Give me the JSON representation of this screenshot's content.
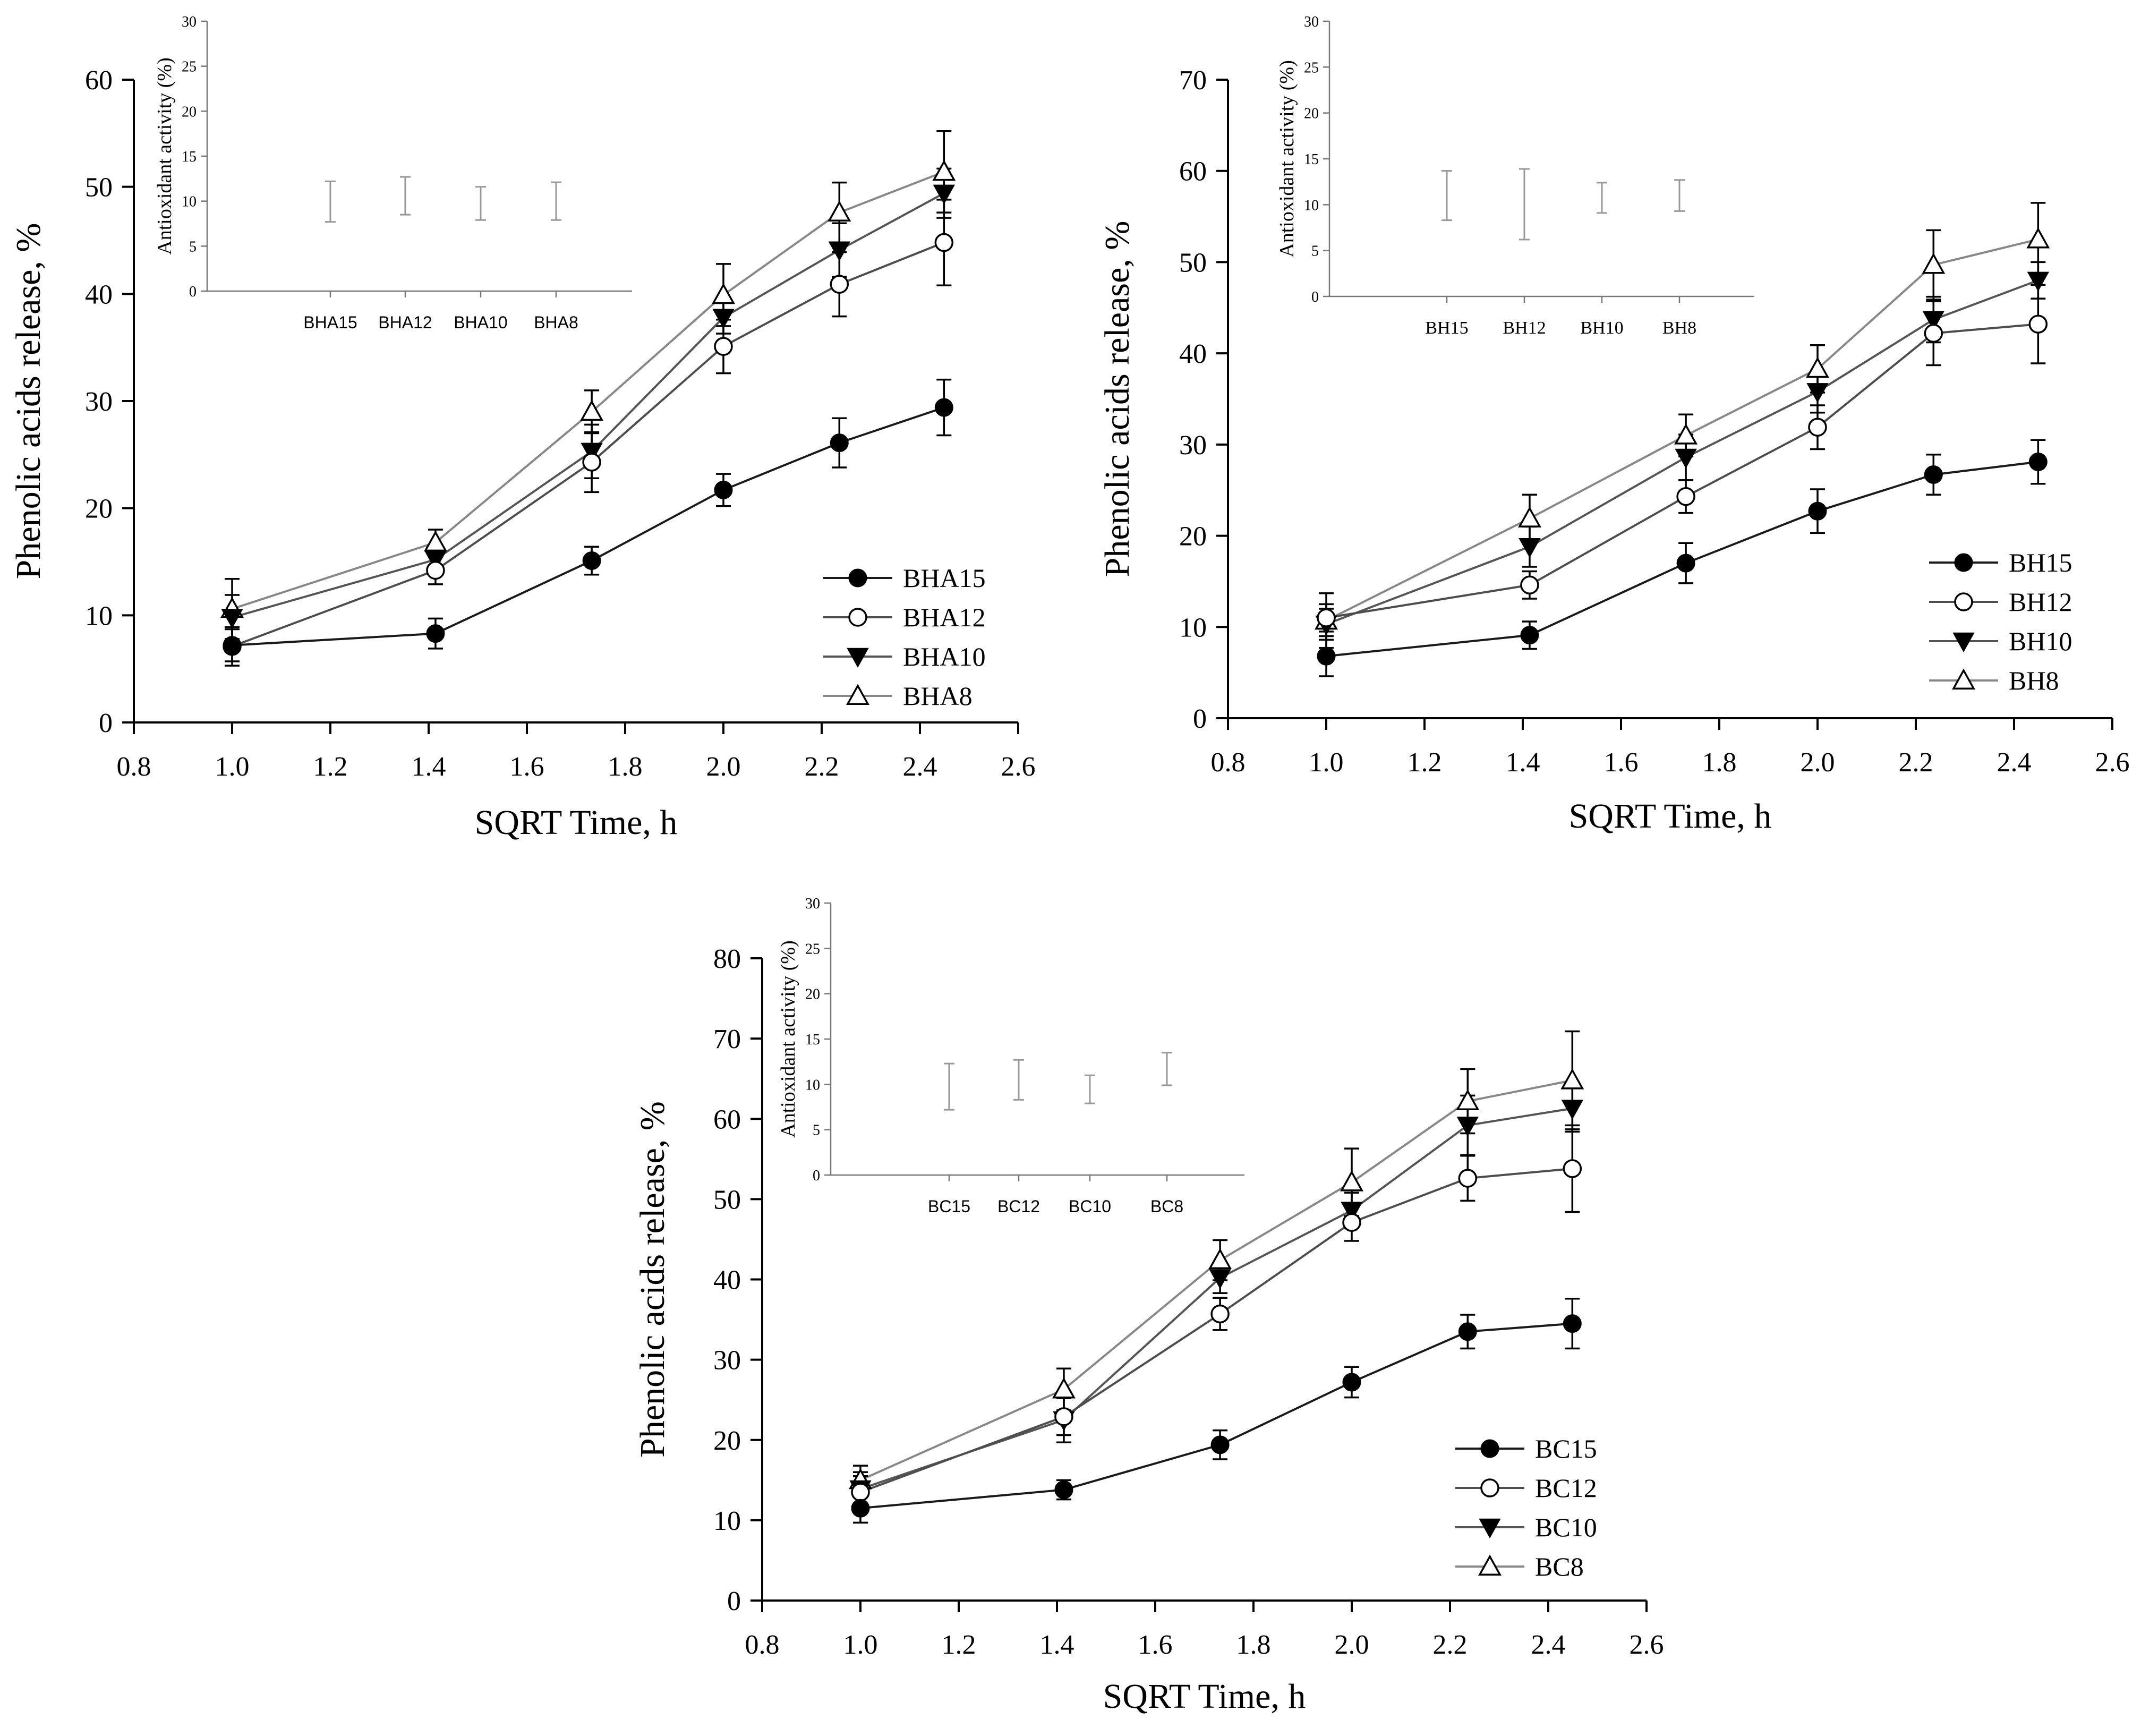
{
  "colors": {
    "axis": "#000000",
    "inset_axis": "#888888",
    "inset_bar": "#999999",
    "series": {
      "filled_circle": "#000000",
      "open_circle": "#000000",
      "filled_triangle_down": "#000000",
      "open_triangle_up": "#000000"
    },
    "lines": [
      "#1a1a1a",
      "#4d4d4d",
      "#555555",
      "#888888"
    ]
  },
  "chart_data": [
    {
      "type": "line",
      "panel": "top-left",
      "xlabel": "SQRT Time, h",
      "ylabel": "Phenolic acids release, %",
      "xlim": [
        0.8,
        2.6
      ],
      "ylim": [
        0,
        60
      ],
      "x_ticks": [
        "0.8",
        "1.0",
        "1.2",
        "1.4",
        "1.6",
        "1.8",
        "2.0",
        "2.2",
        "2.4",
        "2.6"
      ],
      "y_ticks": [
        "0",
        "10",
        "20",
        "30",
        "40",
        "50",
        "60"
      ],
      "x": [
        1.0,
        1.414,
        1.732,
        2.0,
        2.236,
        2.449
      ],
      "series": [
        {
          "name": "BHA15",
          "marker": "filled_circle",
          "values": [
            7.2,
            8.3,
            15.1,
            21.7,
            26.1,
            29.4
          ],
          "errors": [
            1.5,
            1.4,
            1.3,
            1.5,
            2.3,
            2.6
          ]
        },
        {
          "name": "BHA12",
          "marker": "open_circle",
          "values": [
            7.1,
            14.2,
            24.3,
            35.1,
            40.9,
            44.8
          ],
          "errors": [
            1.8,
            1.3,
            2.8,
            2.5,
            3.0,
            4.0
          ]
        },
        {
          "name": "BHA10",
          "marker": "filled_triangle_down",
          "values": [
            9.8,
            15.2,
            25.3,
            37.8,
            44.1,
            49.4
          ],
          "errors": [
            2.1,
            1.2,
            2.5,
            1.5,
            2.5,
            2.3
          ]
        },
        {
          "name": "BHA8",
          "marker": "open_triangle_up",
          "values": [
            10.6,
            16.8,
            29.0,
            39.9,
            47.6,
            51.4
          ],
          "errors": [
            2.8,
            1.2,
            2.0,
            2.9,
            2.8,
            3.8
          ]
        }
      ],
      "legend_position": "bottom-right",
      "inset": {
        "type": "errorbar",
        "ylabel": "Antioxidant activity (%)",
        "ylim": [
          0,
          30
        ],
        "y_ticks": [
          "0",
          "5",
          "10",
          "15",
          "20",
          "25",
          "30"
        ],
        "categories": [
          "BHA15",
          "BHA12",
          "BHA10",
          "BHA8"
        ],
        "intervals": [
          [
            7.7,
            12.2
          ],
          [
            8.5,
            12.7
          ],
          [
            7.9,
            11.6
          ],
          [
            7.9,
            12.1
          ]
        ]
      }
    },
    {
      "type": "line",
      "panel": "top-right",
      "xlabel": "SQRT Time, h",
      "ylabel": "Phenolic acids release, %",
      "xlim": [
        0.8,
        2.6
      ],
      "ylim": [
        0,
        70
      ],
      "x_ticks": [
        "0.8",
        "1.0",
        "1.2",
        "1.4",
        "1.6",
        "1.8",
        "2.0",
        "2.2",
        "2.4",
        "2.6"
      ],
      "y_ticks": [
        "0",
        "10",
        "20",
        "30",
        "40",
        "50",
        "60",
        "70"
      ],
      "x": [
        1.0,
        1.414,
        1.732,
        2.0,
        2.236,
        2.449
      ],
      "series": [
        {
          "name": "BH15",
          "marker": "filled_circle",
          "values": [
            6.8,
            9.1,
            17.0,
            22.7,
            26.7,
            28.1
          ],
          "errors": [
            2.2,
            1.5,
            2.2,
            2.4,
            2.2,
            2.4
          ]
        },
        {
          "name": "BH12",
          "marker": "open_circle",
          "values": [
            11.0,
            14.6,
            24.3,
            31.9,
            42.2,
            43.2
          ],
          "errors": [
            1.5,
            1.5,
            1.8,
            2.4,
            3.5,
            4.3
          ]
        },
        {
          "name": "BH10",
          "marker": "filled_triangle_down",
          "values": [
            10.3,
            18.8,
            28.6,
            35.8,
            43.7,
            48.0
          ],
          "errors": [
            1.7,
            2.2,
            2.5,
            2.3,
            2.5,
            2.0
          ]
        },
        {
          "name": "BH8",
          "marker": "open_triangle_up",
          "values": [
            10.7,
            21.9,
            31.0,
            38.3,
            49.7,
            52.5
          ],
          "errors": [
            3.0,
            2.6,
            2.3,
            2.6,
            3.8,
            4.0
          ]
        }
      ],
      "legend_position": "bottom-right",
      "inset": {
        "type": "errorbar",
        "ylabel": "Antioxidant activity (%)",
        "ylim": [
          0,
          30
        ],
        "y_ticks": [
          "0",
          "5",
          "10",
          "15",
          "20",
          "25",
          "30"
        ],
        "categories": [
          "BH15",
          "BH12",
          "BH10",
          "BH8"
        ],
        "intervals": [
          [
            8.3,
            13.7
          ],
          [
            6.2,
            13.9
          ],
          [
            9.1,
            12.4
          ],
          [
            9.3,
            12.7
          ]
        ]
      }
    },
    {
      "type": "line",
      "panel": "bottom-center",
      "xlabel": "SQRT Time, h",
      "ylabel": "Phenolic acids release, %",
      "xlim": [
        0.8,
        2.6
      ],
      "ylim": [
        0,
        80
      ],
      "x_ticks": [
        "0.8",
        "1.0",
        "1.2",
        "1.4",
        "1.6",
        "1.8",
        "2.0",
        "2.2",
        "2.4",
        "2.6"
      ],
      "y_ticks": [
        "0",
        "10",
        "20",
        "30",
        "40",
        "50",
        "60",
        "70",
        "80"
      ],
      "x": [
        1.0,
        1.414,
        1.732,
        2.0,
        2.236,
        2.449
      ],
      "series": [
        {
          "name": "BC15",
          "marker": "filled_circle",
          "values": [
            11.5,
            13.8,
            19.4,
            27.2,
            33.5,
            34.5
          ],
          "errors": [
            1.8,
            1.2,
            1.8,
            1.9,
            2.1,
            3.1
          ]
        },
        {
          "name": "BC12",
          "marker": "open_circle",
          "values": [
            13.5,
            22.9,
            35.7,
            47.1,
            52.6,
            53.8
          ],
          "errors": [
            2.0,
            2.3,
            2.0,
            2.3,
            2.8,
            5.4
          ]
        },
        {
          "name": "BC10",
          "marker": "filled_triangle_down",
          "values": [
            13.9,
            22.5,
            40.2,
            48.6,
            59.2,
            61.3
          ],
          "errors": [
            2.1,
            2.8,
            1.9,
            2.2,
            3.7,
            2.9
          ]
        },
        {
          "name": "BC8",
          "marker": "open_triangle_up",
          "values": [
            15.0,
            26.3,
            42.4,
            52.1,
            62.2,
            64.8
          ],
          "errors": [
            1.8,
            2.6,
            2.5,
            4.2,
            4.0,
            6.1
          ]
        }
      ],
      "legend_position": "bottom-right",
      "inset": {
        "type": "errorbar",
        "ylabel": "Antioxidant activity (%)",
        "ylim": [
          0,
          30
        ],
        "y_ticks": [
          "0",
          "5",
          "10",
          "15",
          "20",
          "25",
          "30"
        ],
        "categories": [
          "BC15",
          "BC12",
          "BC10",
          "BC8"
        ],
        "intervals": [
          [
            7.2,
            12.3
          ],
          [
            8.3,
            12.7
          ],
          [
            7.9,
            11.0
          ],
          [
            9.9,
            13.5
          ]
        ]
      }
    }
  ]
}
